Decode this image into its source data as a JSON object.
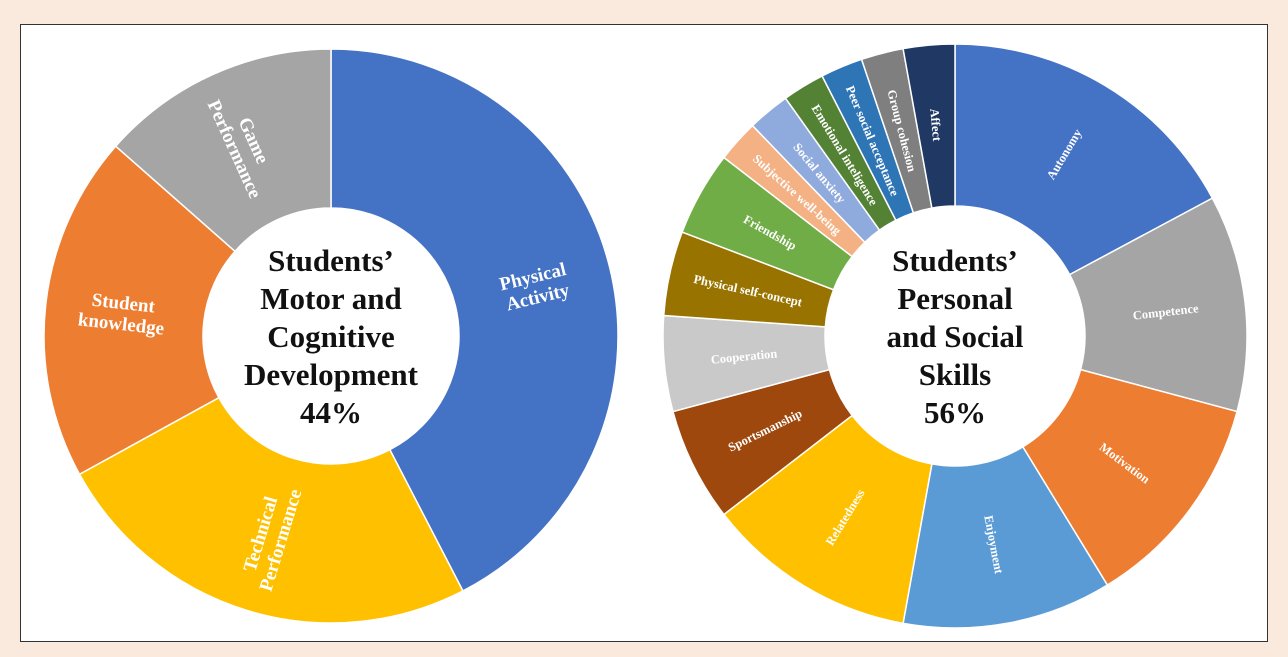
{
  "chart_data": [
    {
      "type": "pie",
      "variant": "donut",
      "center_lines": [
        "Students’",
        "Motor and",
        "Cognitive",
        "Development",
        "44%"
      ],
      "slices": [
        {
          "label_lines": [
            "Physical",
            "Activity"
          ],
          "value": 42.4,
          "color": "#4472c4"
        },
        {
          "label_lines": [
            "Technical",
            "Performance"
          ],
          "value": 24.6,
          "color": "#ffc000"
        },
        {
          "label_lines": [
            "Student",
            "knowledge"
          ],
          "value": 19.5,
          "color": "#ed7d31"
        },
        {
          "label_lines": [
            "Game",
            "Performance"
          ],
          "value": 13.5,
          "color": "#a5a5a5"
        }
      ]
    },
    {
      "type": "pie",
      "variant": "donut",
      "center_lines": [
        "Students’",
        "Personal",
        "and Social",
        "Skills",
        "56%"
      ],
      "slices": [
        {
          "label_lines": [
            "Autonomy"
          ],
          "value": 16.9,
          "color": "#4472c4"
        },
        {
          "label_lines": [
            "Competence"
          ],
          "value": 11.8,
          "color": "#a5a5a5"
        },
        {
          "label_lines": [
            "Motivation"
          ],
          "value": 11.9,
          "color": "#ed7d31"
        },
        {
          "label_lines": [
            "Enjoyment"
          ],
          "value": 11.4,
          "color": "#5b9bd5"
        },
        {
          "label_lines": [
            "Relatedness"
          ],
          "value": 11.5,
          "color": "#ffc000"
        },
        {
          "label_lines": [
            "Sportsmanship"
          ],
          "value": 6.2,
          "color": "#9e480e"
        },
        {
          "label_lines": [
            "Cooperation"
          ],
          "value": 5.2,
          "color": "#c9c9c9"
        },
        {
          "label_lines": [
            "Physical self-concept"
          ],
          "value": 4.6,
          "color": "#997300"
        },
        {
          "label_lines": [
            "Friendship"
          ],
          "value": 4.6,
          "color": "#70ad47"
        },
        {
          "label_lines": [
            "Subjective well-being"
          ],
          "value": 2.3,
          "color": "#f4b183"
        },
        {
          "label_lines": [
            "Social anxiety"
          ],
          "value": 2.3,
          "color": "#8faadc"
        },
        {
          "label_lines": [
            "Emotional inteligence"
          ],
          "value": 2.3,
          "color": "#548235"
        },
        {
          "label_lines": [
            "Peer social acceptance"
          ],
          "value": 2.3,
          "color": "#2e75b6"
        },
        {
          "label_lines": [
            "Group cohesion"
          ],
          "value": 2.3,
          "color": "#7f7f7f"
        },
        {
          "label_lines": [
            "Affect"
          ],
          "value": 2.8,
          "color": "#203864"
        }
      ]
    }
  ]
}
